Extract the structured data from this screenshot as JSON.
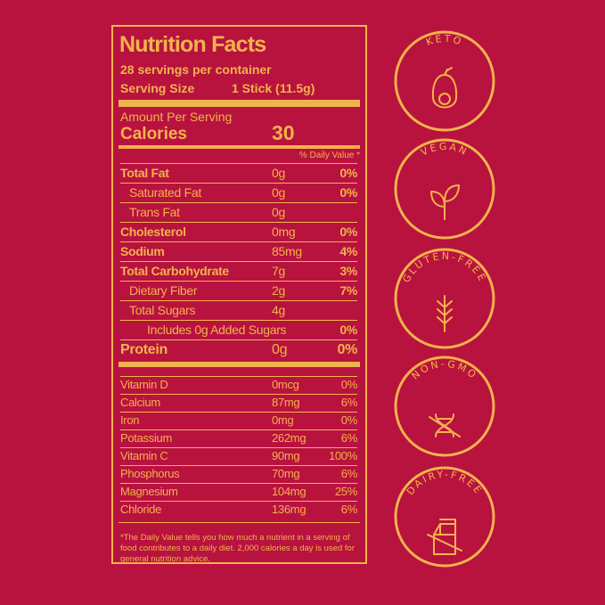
{
  "nutrition_facts": {
    "title": "Nutrition Facts",
    "servings": "28 servings per container",
    "serving_size_label": "Serving Size",
    "serving_size": "1 Stick (11.5g)",
    "amount_per_serving": "Amount Per Serving",
    "calories_label": "Calories",
    "calories": 30,
    "daily_value_header": "% Daily Value *",
    "nutrients": [
      {
        "name": "Total Fat",
        "amount": "0g",
        "daily_value": "0%"
      },
      {
        "name": "Saturated Fat",
        "amount": "0g",
        "daily_value": "0%"
      },
      {
        "name": "Trans Fat",
        "amount": "0g"
      },
      {
        "name": "Cholesterol",
        "amount": "0mg",
        "daily_value": "0%"
      },
      {
        "name": "Sodium",
        "amount": "85mg",
        "daily_value": "4%"
      },
      {
        "name": "Total Carbohydrate",
        "amount": "7g",
        "daily_value": "3%"
      },
      {
        "name": "Dietary Fiber",
        "amount": "2g",
        "daily_value": "7%"
      },
      {
        "name": "Total Sugars",
        "amount": "4g"
      },
      {
        "name": "Includes 0g Added Sugars",
        "daily_value": "0%"
      },
      {
        "name": "Protein",
        "amount": "0g",
        "daily_value": "0%"
      }
    ],
    "vitamins_minerals": [
      {
        "name": "Vitamin D",
        "amount": "0mcg",
        "daily_value": "0%"
      },
      {
        "name": "Calcium",
        "amount": "87mg",
        "daily_value": "6%"
      },
      {
        "name": "Iron",
        "amount": "0mg",
        "daily_value": "0%"
      },
      {
        "name": "Potassium",
        "amount": "262mg",
        "daily_value": "6%"
      },
      {
        "name": "Vitamin C",
        "amount": "90mg",
        "daily_value": "100%"
      },
      {
        "name": "Phosphorus",
        "amount": "70mg",
        "daily_value": "6%"
      },
      {
        "name": "Magnesium",
        "amount": "104mg",
        "daily_value": "25%"
      },
      {
        "name": "Chloride",
        "amount": "136mg",
        "daily_value": "6%"
      }
    ],
    "footnote": "*The Daily Value tells you how much a nutrient in a serving of food contributes to a daily diet. 2,000 calories a day is used for general nutrition advice."
  },
  "badges": [
    "KETO",
    "VEGAN",
    "GLUTEN-FREE",
    "NON-GMO",
    "DAIRY-FREE"
  ]
}
